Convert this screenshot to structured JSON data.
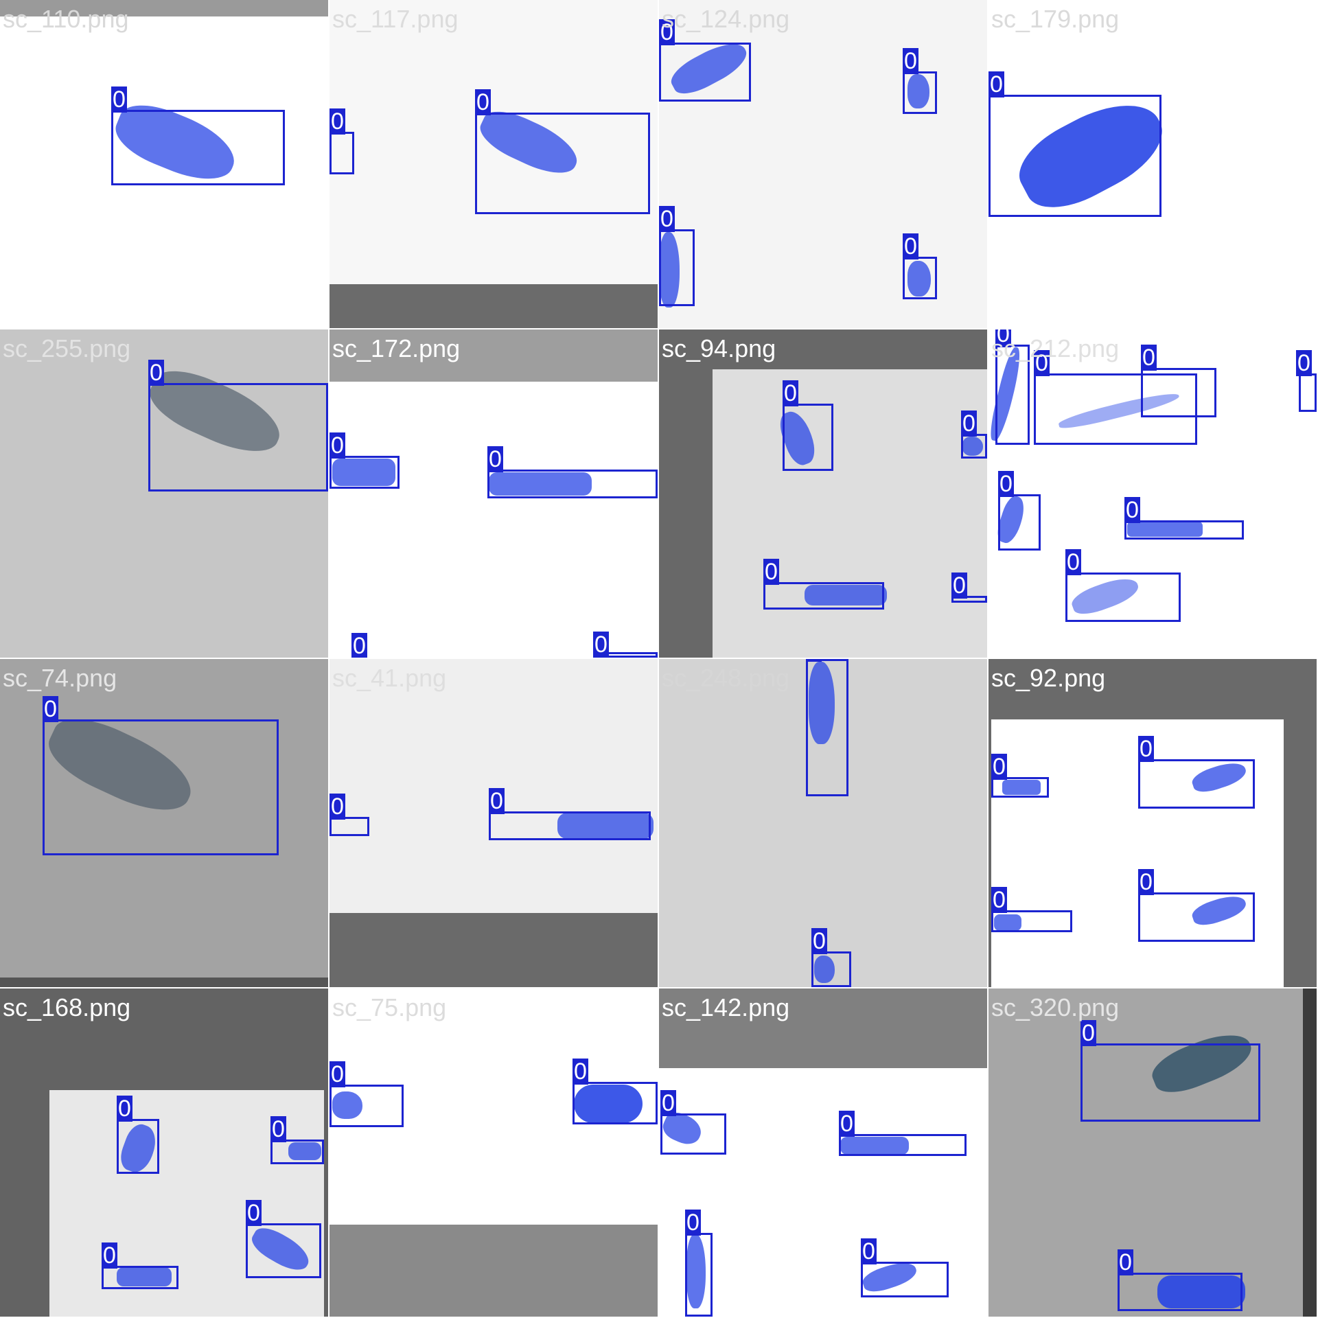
{
  "colors": {
    "box": "#1c24d0",
    "box_label_text": "#ffffff",
    "mask": "rgba(40,70,230,0.75)"
  },
  "detection_class_label": "0",
  "tiles": [
    {
      "label": "sc_110.png",
      "label_color": "#d9d9d9",
      "bg": "#ffffff"
    },
    {
      "label": "sc_117.png",
      "label_color": "#dcdcdc",
      "bg": "#f7f7f7"
    },
    {
      "label": "sc_124.png",
      "label_color": "#d9d9d9",
      "bg": "#f4f4f4"
    },
    {
      "label": "sc_179.png",
      "label_color": "#dadada",
      "bg": "#ffffff"
    },
    {
      "label": "sc_255.png",
      "label_color": "#e3e3e3",
      "bg": "#c6c6c6"
    },
    {
      "label": "sc_172.png",
      "label_color": "#ffffff",
      "bg": "#ffffff"
    },
    {
      "label": "sc_94.png",
      "label_color": "#ffffff",
      "bg": "#686868"
    },
    {
      "label": "sc_212.png",
      "label_color": "#e0e0e0",
      "bg": "#ffffff"
    },
    {
      "label": "sc_74.png",
      "label_color": "#e6e6e6",
      "bg": "#a3a3a3"
    },
    {
      "label": "sc_41.png",
      "label_color": "#dedede",
      "bg": "#efefef"
    },
    {
      "label": "sc_248.png",
      "label_color": "#d6d6d6",
      "bg": "#d3d3d3"
    },
    {
      "label": "sc_92.png",
      "label_color": "#ffffff",
      "bg": "#6a6a6a"
    },
    {
      "label": "sc_168.png",
      "label_color": "#ffffff",
      "bg": "#636363"
    },
    {
      "label": "sc_75.png",
      "label_color": "#dcdcdc",
      "bg": "#ffffff"
    },
    {
      "label": "sc_142.png",
      "label_color": "#ffffff",
      "bg": "#ffffff"
    },
    {
      "label": "sc_320.png",
      "label_color": "#e6e6e6",
      "bg": "#a6a6a6"
    }
  ]
}
